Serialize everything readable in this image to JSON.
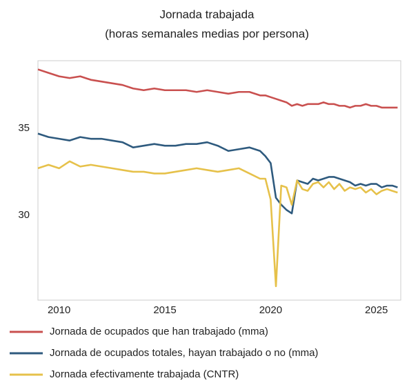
{
  "chart_data": {
    "type": "line",
    "title": "Jornada trabajada",
    "subtitle": "(horas semanales medias por persona)",
    "x": [
      2009,
      2009.5,
      2010,
      2010.5,
      2011,
      2011.5,
      2012,
      2012.5,
      2013,
      2013.5,
      2014,
      2014.5,
      2015,
      2015.5,
      2016,
      2016.5,
      2017,
      2017.5,
      2018,
      2018.5,
      2019,
      2019.5,
      2019.75,
      2020,
      2020.25,
      2020.5,
      2020.75,
      2021,
      2021.25,
      2021.5,
      2021.75,
      2022,
      2022.25,
      2022.5,
      2022.75,
      2023,
      2023.25,
      2023.5,
      2023.75,
      2024,
      2024.25,
      2024.5,
      2024.75,
      2025,
      2025.25,
      2025.5,
      2025.75,
      2026
    ],
    "series": [
      {
        "name": "Jornada de ocupados que han trabajado (mma)",
        "color": "#c9504f",
        "values": [
          38.4,
          38.2,
          38.0,
          37.9,
          38.0,
          37.8,
          37.7,
          37.6,
          37.5,
          37.3,
          37.2,
          37.3,
          37.2,
          37.2,
          37.2,
          37.1,
          37.2,
          37.1,
          37.0,
          37.1,
          37.1,
          36.9,
          36.9,
          36.8,
          36.7,
          36.6,
          36.5,
          36.3,
          36.4,
          36.3,
          36.4,
          36.4,
          36.4,
          36.5,
          36.4,
          36.4,
          36.3,
          36.3,
          36.2,
          36.3,
          36.3,
          36.4,
          36.3,
          36.3,
          36.2,
          36.2,
          36.2,
          36.2
        ]
      },
      {
        "name": "Jornada de ocupados totales, hayan trabajado o no (mma)",
        "color": "#2e5a7e",
        "values": [
          34.7,
          34.5,
          34.4,
          34.3,
          34.5,
          34.4,
          34.4,
          34.3,
          34.2,
          33.9,
          34.0,
          34.1,
          34.0,
          34.0,
          34.1,
          34.1,
          34.2,
          34.0,
          33.7,
          33.8,
          33.9,
          33.7,
          33.4,
          33.0,
          31.0,
          30.6,
          30.3,
          30.1,
          32.0,
          31.9,
          31.8,
          32.1,
          32.0,
          32.1,
          32.2,
          32.2,
          32.1,
          32.0,
          31.9,
          31.7,
          31.8,
          31.7,
          31.8,
          31.8,
          31.6,
          31.7,
          31.7,
          31.6
        ]
      },
      {
        "name": "Jornada efectivamente trabajada (CNTR)",
        "color": "#e6c14a",
        "values": [
          32.7,
          32.9,
          32.7,
          33.1,
          32.8,
          32.9,
          32.8,
          32.7,
          32.6,
          32.5,
          32.5,
          32.4,
          32.4,
          32.5,
          32.6,
          32.7,
          32.6,
          32.5,
          32.6,
          32.7,
          32.4,
          32.1,
          32.1,
          30.9,
          25.9,
          31.7,
          31.6,
          30.6,
          32.0,
          31.5,
          31.4,
          31.8,
          31.9,
          31.6,
          31.9,
          31.5,
          31.8,
          31.4,
          31.6,
          31.5,
          31.6,
          31.3,
          31.5,
          31.2,
          31.4,
          31.5,
          31.4,
          31.3
        ]
      }
    ],
    "xlim": [
      2009,
      2026.15
    ],
    "xticks": [
      2010,
      2015,
      2020,
      2025
    ],
    "ylim": [
      25.1,
      38.9
    ],
    "yticks": [
      30,
      35
    ],
    "grid": false,
    "legend": "bottom"
  }
}
